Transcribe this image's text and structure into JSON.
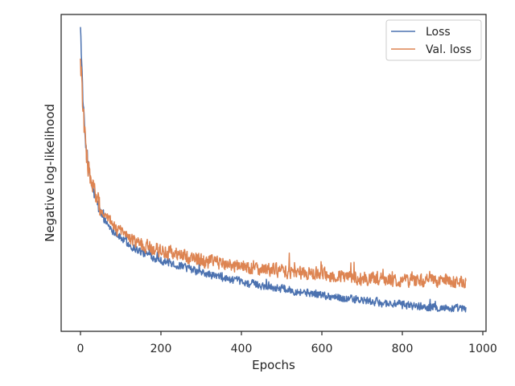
{
  "chart_data": {
    "type": "line",
    "title": "",
    "xlabel": "Epochs",
    "ylabel": "Negative log-likelihood",
    "xlim": [
      -48,
      1008
    ],
    "ylim": [
      0,
      1
    ],
    "x_ticks": [
      0,
      200,
      400,
      600,
      800,
      1000
    ],
    "x_tick_labels": [
      "0",
      "200",
      "400",
      "600",
      "800",
      "1000"
    ],
    "y_ticks_shown": false,
    "grid": false,
    "legend_position": "top-right",
    "series": [
      {
        "name": "Loss",
        "color": "#4c72b0",
        "noise": 0.012,
        "points": [
          [
            0,
            0.97
          ],
          [
            3,
            0.85
          ],
          [
            6,
            0.74
          ],
          [
            10,
            0.64
          ],
          [
            15,
            0.56
          ],
          [
            20,
            0.51
          ],
          [
            30,
            0.45
          ],
          [
            45,
            0.39
          ],
          [
            60,
            0.35
          ],
          [
            80,
            0.32
          ],
          [
            100,
            0.295
          ],
          [
            130,
            0.265
          ],
          [
            160,
            0.245
          ],
          [
            200,
            0.225
          ],
          [
            250,
            0.205
          ],
          [
            300,
            0.185
          ],
          [
            350,
            0.17
          ],
          [
            400,
            0.155
          ],
          [
            450,
            0.145
          ],
          [
            500,
            0.135
          ],
          [
            550,
            0.125
          ],
          [
            600,
            0.115
          ],
          [
            650,
            0.105
          ],
          [
            700,
            0.097
          ],
          [
            750,
            0.09
          ],
          [
            800,
            0.084
          ],
          [
            850,
            0.078
          ],
          [
            900,
            0.074
          ],
          [
            958,
            0.07
          ]
        ]
      },
      {
        "name": "Val. loss",
        "color": "#dd8452",
        "noise": 0.02,
        "points": [
          [
            0,
            0.86
          ],
          [
            3,
            0.79
          ],
          [
            6,
            0.71
          ],
          [
            10,
            0.63
          ],
          [
            15,
            0.56
          ],
          [
            20,
            0.51
          ],
          [
            30,
            0.46
          ],
          [
            45,
            0.4
          ],
          [
            60,
            0.36
          ],
          [
            80,
            0.335
          ],
          [
            100,
            0.31
          ],
          [
            130,
            0.285
          ],
          [
            160,
            0.27
          ],
          [
            200,
            0.255
          ],
          [
            250,
            0.24
          ],
          [
            300,
            0.225
          ],
          [
            350,
            0.215
          ],
          [
            400,
            0.205
          ],
          [
            450,
            0.198
          ],
          [
            500,
            0.19
          ],
          [
            550,
            0.184
          ],
          [
            600,
            0.178
          ],
          [
            650,
            0.172
          ],
          [
            700,
            0.168
          ],
          [
            750,
            0.164
          ],
          [
            800,
            0.162
          ],
          [
            850,
            0.16
          ],
          [
            900,
            0.158
          ],
          [
            958,
            0.156
          ]
        ]
      }
    ]
  }
}
